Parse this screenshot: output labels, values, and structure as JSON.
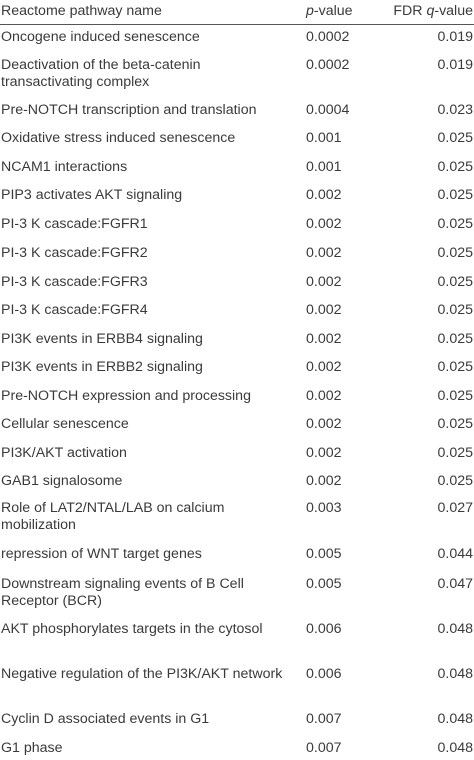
{
  "header": {
    "name": "Reactome pathway name",
    "p_prefix": "p",
    "p_suffix": "-value",
    "q_prefix": "FDR ",
    "q_italic": "q",
    "q_suffix": "-value"
  },
  "rows": [
    {
      "name": "Oncogene induced senescence",
      "p": "0.0002",
      "q": "0.019"
    },
    {
      "name": "Deactivation of the beta-catenin transactivating complex",
      "p": "0.0002",
      "q": "0.019"
    },
    {
      "name": "Pre-NOTCH transcription and translation",
      "p": "0.0004",
      "q": "0.023"
    },
    {
      "name": "Oxidative stress induced senescence",
      "p": "0.001",
      "q": "0.025"
    },
    {
      "name": "NCAM1 interactions",
      "p": "0.001",
      "q": "0.025"
    },
    {
      "name": "PIP3 activates AKT signaling",
      "p": "0.002",
      "q": "0.025"
    },
    {
      "name": "PI-3 K cascade:FGFR1",
      "p": "0.002",
      "q": "0.025"
    },
    {
      "name": "PI-3 K cascade:FGFR2",
      "p": "0.002",
      "q": "0.025"
    },
    {
      "name": "PI-3 K cascade:FGFR3",
      "p": "0.002",
      "q": "0.025"
    },
    {
      "name": "PI-3 K cascade:FGFR4",
      "p": "0.002",
      "q": "0.025"
    },
    {
      "name": "PI3K events in ERBB4 signaling",
      "p": "0.002",
      "q": "0.025"
    },
    {
      "name": "PI3K events in ERBB2 signaling",
      "p": "0.002",
      "q": "0.025"
    },
    {
      "name": "Pre-NOTCH expression and processing",
      "p": "0.002",
      "q": "0.025"
    },
    {
      "name": "Cellular senescence",
      "p": "0.002",
      "q": "0.025"
    },
    {
      "name": "PI3K/AKT activation",
      "p": "0.002",
      "q": "0.025"
    },
    {
      "name": "GAB1 signalosome",
      "p": "0.002",
      "q": "0.025"
    },
    {
      "name": "Role of LAT2/NTAL/LAB on calcium mobilization",
      "p": "0.003",
      "q": "0.027"
    },
    {
      "name": "repression of WNT target genes",
      "p": "0.005",
      "q": "0.044"
    },
    {
      "name": "Downstream signaling events of B Cell Receptor (BCR)",
      "p": "0.005",
      "q": "0.047"
    },
    {
      "name": "AKT phosphorylates targets in the cytosol",
      "p": "0.006",
      "q": "0.048"
    },
    {
      "name": "Negative regulation of the PI3K/AKT network",
      "p": "0.006",
      "q": "0.048"
    },
    {
      "name": "Cyclin D associated events in G1",
      "p": "0.007",
      "q": "0.048"
    },
    {
      "name": "G1 phase",
      "p": "0.007",
      "q": "0.048"
    }
  ]
}
